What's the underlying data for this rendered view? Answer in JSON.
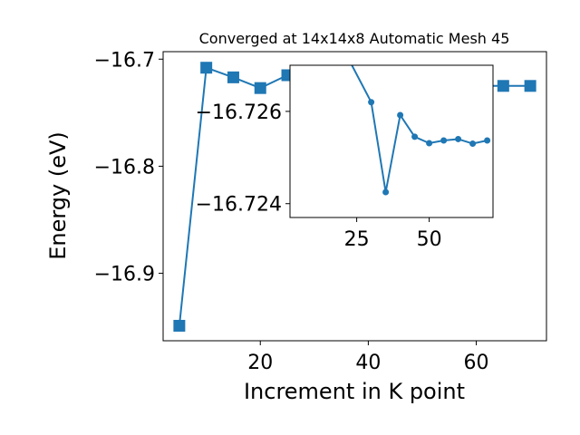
{
  "chart_data": [
    {
      "type": "line",
      "title": "Converged at 14x14x8 Automatic Mesh 45",
      "xlabel": "Increment in K point",
      "ylabel": "Energy (eV)",
      "xlim": [
        2,
        73
      ],
      "ylim": [
        -16.963,
        -16.693
      ],
      "xticks": [
        20,
        40,
        60
      ],
      "yticks": [
        -16.7,
        -16.8,
        -16.9
      ],
      "ytick_labels": [
        "−16.7",
        "−16.8",
        "−16.9"
      ],
      "grid": false,
      "series": [
        {
          "color": "#1f77b4",
          "marker": "square",
          "x": [
            5,
            10,
            15,
            20,
            25,
            30,
            35,
            40,
            45,
            50,
            55,
            60,
            65,
            70
          ],
          "y": [
            -16.949,
            -16.708,
            -16.717,
            -16.727,
            -16.715,
            -16.718,
            -16.722,
            -16.725,
            -16.725,
            -16.725,
            -16.725,
            -16.725,
            -16.725,
            -16.725
          ]
        }
      ]
    },
    {
      "type": "line",
      "title": "",
      "xlabel": "",
      "ylabel": "",
      "xlim": [
        2,
        72
      ],
      "ylim": [
        -16.7237,
        -16.727
      ],
      "xticks": [
        25,
        50
      ],
      "yticks": [
        -16.726,
        -16.724
      ],
      "ytick_labels": [
        "−16.726",
        "−16.724"
      ],
      "grid": false,
      "series": [
        {
          "color": "#1f77b4",
          "marker": "circle",
          "x": [
            20,
            30,
            35,
            40,
            45,
            50,
            55,
            60,
            65,
            70
          ],
          "y": [
            -16.7274,
            -16.7262,
            -16.72425,
            -16.72592,
            -16.72545,
            -16.72531,
            -16.72537,
            -16.7254,
            -16.7253,
            -16.72537
          ]
        }
      ]
    }
  ]
}
